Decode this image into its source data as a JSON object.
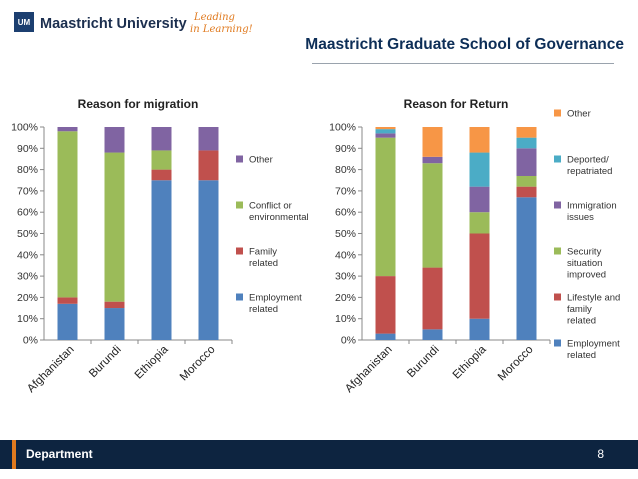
{
  "header": {
    "university": "Maastricht University",
    "tagline_1": "Leading",
    "tagline_2": "in Learning!",
    "school": "Maastricht Graduate School of Governance"
  },
  "footer": {
    "department": "Department",
    "page_number": "8"
  },
  "colors": {
    "employment": "#4f81bd",
    "family": "#c0504d",
    "conflict": "#9bbb59",
    "other_left": "#8064a2",
    "immigration": "#8064a2",
    "deported": "#4bacc6",
    "other_right": "#f79646",
    "navy": "#0d2440",
    "orange": "#e07a1f"
  },
  "chart_data": [
    {
      "type": "bar",
      "stacked": true,
      "title": "Reason for migration",
      "categories": [
        "Afghanistan",
        "Burundi",
        "Ethiopia",
        "Morocco"
      ],
      "ylim": [
        0,
        100
      ],
      "yticks": [
        "0%",
        "10%",
        "20%",
        "30%",
        "40%",
        "50%",
        "60%",
        "70%",
        "80%",
        "90%",
        "100%"
      ],
      "legend_position": "right",
      "series": [
        {
          "name": "Employment related",
          "color_key": "employment",
          "values": [
            17,
            15,
            75,
            75
          ]
        },
        {
          "name": "Family related",
          "color_key": "family",
          "values": [
            3,
            3,
            5,
            14
          ]
        },
        {
          "name": "Conflict or environmental",
          "color_key": "conflict",
          "values": [
            78,
            70,
            9,
            0
          ]
        },
        {
          "name": "Other",
          "color_key": "other_left",
          "values": [
            2,
            12,
            11,
            11
          ]
        }
      ]
    },
    {
      "type": "bar",
      "stacked": true,
      "title": "Reason for Return",
      "categories": [
        "Afghanistan",
        "Burundi",
        "Ethiopia",
        "Morocco"
      ],
      "ylim": [
        0,
        100
      ],
      "yticks": [
        "0%",
        "10%",
        "20%",
        "30%",
        "40%",
        "50%",
        "60%",
        "70%",
        "80%",
        "90%",
        "100%"
      ],
      "legend_position": "right",
      "series": [
        {
          "name": "Employment related",
          "color_key": "employment",
          "values": [
            3,
            5,
            10,
            67
          ]
        },
        {
          "name": "Lifestyle and family related",
          "color_key": "family",
          "values": [
            27,
            29,
            40,
            5
          ]
        },
        {
          "name": "Security situation improved",
          "color_key": "conflict",
          "values": [
            65,
            49,
            10,
            5
          ]
        },
        {
          "name": "Immigration issues",
          "color_key": "immigration",
          "values": [
            2,
            3,
            12,
            13
          ]
        },
        {
          "name": "Deported/ repatriated",
          "color_key": "deported",
          "values": [
            2,
            0,
            16,
            5
          ]
        },
        {
          "name": "Other",
          "color_key": "other_right",
          "values": [
            1,
            14,
            12,
            5
          ]
        }
      ]
    }
  ]
}
